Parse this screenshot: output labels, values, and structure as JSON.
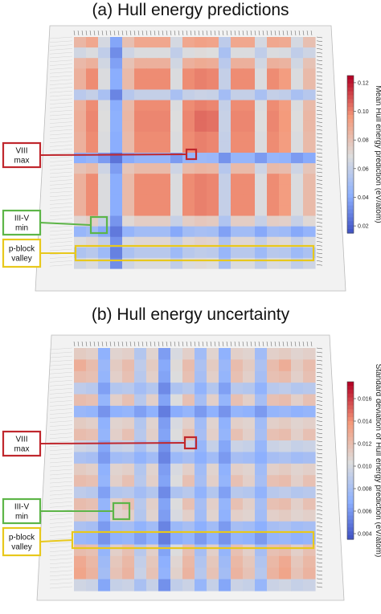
{
  "chart_data": [
    {
      "type": "heatmap",
      "title": "(a) Hull energy predictions",
      "colorbar": {
        "label": "Mean Hull energy prediction (eV/atom)",
        "ticks": [
          "0.02",
          "0.04",
          "0.06",
          "0.08",
          "0.10",
          "0.12"
        ],
        "range": [
          0.015,
          0.125
        ],
        "colormap": [
          "#3b4cc0",
          "#8db0fe",
          "#dddddd",
          "#f49a7b",
          "#b40426"
        ]
      },
      "row_profile": [
        0.09,
        0.06,
        0.085,
        0.1,
        0.1,
        0.05,
        0.1,
        0.105,
        0.105,
        0.1,
        0.1,
        0.03,
        0.08,
        0.1,
        0.1,
        0.1,
        0.1,
        0.07,
        0.035,
        0.065,
        0.045,
        0.06
      ],
      "col_profile": [
        0.085,
        0.1,
        0.06,
        0.025,
        0.08,
        0.1,
        0.1,
        0.1,
        0.06,
        0.1,
        0.11,
        0.105,
        0.05,
        0.1,
        0.1,
        0.06,
        0.1,
        0.095,
        0.06,
        0.08
      ],
      "annotations": [
        {
          "label_lines": [
            "VIII",
            "max"
          ],
          "color": "#c0272d"
        },
        {
          "label_lines": [
            "III-V",
            "min"
          ],
          "color": "#5db548"
        },
        {
          "label_lines": [
            "p-block",
            "valley"
          ],
          "color": "#e8c81c"
        }
      ]
    },
    {
      "type": "heatmap",
      "title": "(b) Hull energy uncertainty",
      "colorbar": {
        "label": "Standard deviation of Hull energy prediction (eV/atom)",
        "ticks": [
          "0.004",
          "0.006",
          "0.008",
          "0.010",
          "0.012",
          "0.014",
          "0.016"
        ],
        "range": [
          0.0035,
          0.0175
        ],
        "colormap": [
          "#3b4cc0",
          "#8db0fe",
          "#dddddd",
          "#f49a7b",
          "#b40426"
        ]
      },
      "row_profile": [
        0.011,
        0.013,
        0.012,
        0.008,
        0.012,
        0.006,
        0.011,
        0.012,
        0.009,
        0.007,
        0.011,
        0.012,
        0.008,
        0.012,
        0.011,
        0.007,
        0.006,
        0.012,
        0.014,
        0.015,
        0.009
      ],
      "col_profile": [
        0.013,
        0.012,
        0.006,
        0.011,
        0.012,
        0.008,
        0.011,
        0.005,
        0.01,
        0.012,
        0.007,
        0.011,
        0.006,
        0.012,
        0.011,
        0.007,
        0.012,
        0.013,
        0.011,
        0.012
      ],
      "annotations": [
        {
          "label_lines": [
            "VIII",
            "max"
          ],
          "color": "#c0272d"
        },
        {
          "label_lines": [
            "III-V",
            "min"
          ],
          "color": "#5db548"
        },
        {
          "label_lines": [
            "p-block",
            "valley"
          ],
          "color": "#e8c81c"
        }
      ]
    }
  ]
}
